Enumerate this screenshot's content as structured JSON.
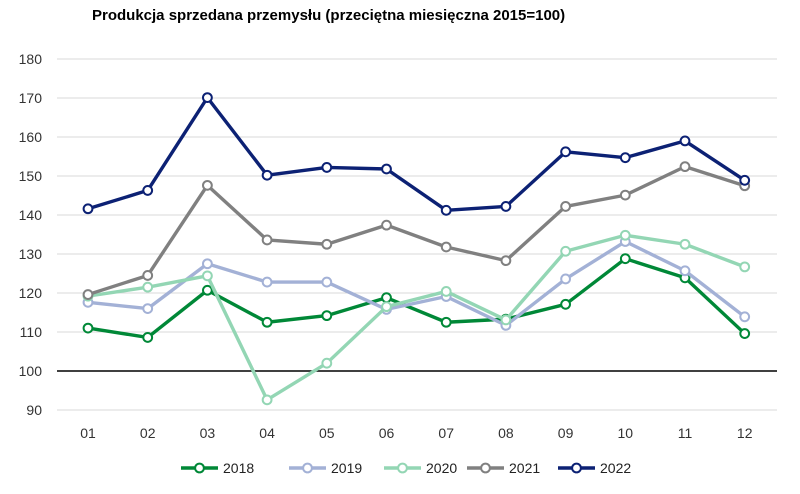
{
  "chart_data": {
    "type": "line",
    "title": "Produkcja sprzedana przemysłu (przeciętna miesięczna 2015=100)",
    "xlabel": "",
    "ylabel": "",
    "ylim": [
      90,
      180
    ],
    "yticks": [
      90,
      100,
      110,
      120,
      130,
      140,
      150,
      160,
      170,
      180
    ],
    "reference_line": 100,
    "grid": true,
    "legend_position": "bottom",
    "categories": [
      "01",
      "02",
      "03",
      "04",
      "05",
      "06",
      "07",
      "08",
      "09",
      "10",
      "11",
      "12"
    ],
    "series": [
      {
        "name": "2018",
        "color": "#008837",
        "values": [
          111.0,
          108.6,
          120.7,
          112.5,
          114.2,
          118.8,
          112.5,
          113.3,
          117.1,
          128.8,
          123.9,
          109.6
        ]
      },
      {
        "name": "2019",
        "color": "#a3b1d6",
        "values": [
          117.6,
          116.0,
          127.5,
          122.8,
          122.8,
          115.8,
          119.1,
          111.7,
          123.6,
          133.2,
          125.7,
          113.9
        ]
      },
      {
        "name": "2020",
        "color": "#93d6b4",
        "values": [
          119.2,
          121.5,
          124.4,
          92.6,
          102.0,
          116.5,
          120.4,
          113.1,
          130.7,
          134.8,
          132.5,
          126.7
        ]
      },
      {
        "name": "2021",
        "color": "#808080",
        "values": [
          119.6,
          124.5,
          147.6,
          133.6,
          132.5,
          137.4,
          131.8,
          128.3,
          142.2,
          145.1,
          152.4,
          147.5
        ]
      },
      {
        "name": "2022",
        "color": "#0c2174",
        "values": [
          141.6,
          146.3,
          170.1,
          150.2,
          152.2,
          151.8,
          141.2,
          142.2,
          156.2,
          154.7,
          159.0,
          148.9
        ]
      }
    ]
  }
}
